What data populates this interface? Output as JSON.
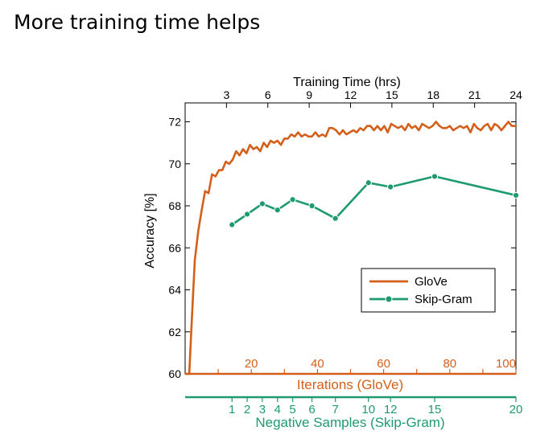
{
  "slide": {
    "title": "More training time helps"
  },
  "chart_data": {
    "type": "line",
    "title": "",
    "ylabel": "Accuracy [%]",
    "ylim": [
      60,
      72.9
    ],
    "yticks": [
      60,
      62,
      64,
      66,
      68,
      70,
      72
    ],
    "grid": false,
    "legend_position": "lower-right",
    "top_axis": {
      "label": "Training Time (hrs)",
      "range": [
        0,
        24
      ],
      "ticks": [
        3,
        6,
        9,
        12,
        15,
        18,
        21,
        24
      ]
    },
    "iterations_axis": {
      "label": "Iterations (GloVe)",
      "color": "#d35f1a",
      "range": [
        0,
        100
      ],
      "ticks": [
        20,
        40,
        60,
        80,
        100
      ]
    },
    "negative_samples_axis": {
      "label": "Negative Samples (Skip-Gram)",
      "color": "#1e9a72",
      "ticks": [
        {
          "label": "1",
          "hrs": 3.4
        },
        {
          "label": "2",
          "hrs": 4.5
        },
        {
          "label": "3",
          "hrs": 5.6
        },
        {
          "label": "4",
          "hrs": 6.7
        },
        {
          "label": "5",
          "hrs": 7.8
        },
        {
          "label": "6",
          "hrs": 9.2
        },
        {
          "label": "7",
          "hrs": 10.9
        },
        {
          "label": "10",
          "hrs": 13.3
        },
        {
          "label": "12",
          "hrs": 14.9
        },
        {
          "label": "15",
          "hrs": 18.1
        },
        {
          "label": "20",
          "hrs": 24.0
        }
      ]
    },
    "series": [
      {
        "name": "GloVe",
        "color": "#d35f1a",
        "marker": "none",
        "x_hrs": [
          0,
          0.3,
          0.5,
          0.7,
          0.95,
          1.2,
          1.45,
          1.7,
          1.95,
          2.2,
          2.45,
          2.7,
          2.95,
          3.2,
          3.45,
          3.7,
          3.95,
          4.2,
          4.45,
          4.7,
          4.95,
          5.2,
          5.45,
          5.7,
          5.95,
          6.2,
          6.45,
          6.7,
          6.95,
          7.2,
          7.45,
          7.7,
          7.95,
          8.2,
          8.45,
          8.7,
          8.95,
          9.2,
          9.45,
          9.7,
          9.95,
          10.2,
          10.45,
          10.7,
          10.95,
          11.2,
          11.45,
          11.7,
          11.95,
          12.2,
          12.45,
          12.7,
          12.95,
          13.2,
          13.45,
          13.7,
          13.95,
          14.2,
          14.45,
          14.7,
          14.95,
          15.2,
          15.45,
          15.7,
          15.95,
          16.2,
          16.45,
          16.7,
          16.95,
          17.2,
          17.45,
          17.7,
          17.95,
          18.2,
          18.45,
          18.7,
          18.95,
          19.2,
          19.45,
          19.7,
          19.95,
          20.2,
          20.45,
          20.7,
          20.95,
          21.2,
          21.45,
          21.7,
          21.95,
          22.2,
          22.45,
          22.7,
          22.95,
          23.2,
          23.45,
          23.7,
          24.0
        ],
        "values": [
          60.0,
          60.0,
          62.8,
          65.4,
          66.8,
          67.8,
          68.7,
          68.6,
          69.5,
          69.4,
          69.7,
          69.7,
          70.1,
          70.0,
          70.2,
          70.6,
          70.4,
          70.7,
          70.5,
          70.9,
          70.7,
          70.8,
          70.6,
          71.0,
          70.8,
          71.1,
          71.0,
          71.1,
          70.9,
          71.2,
          71.2,
          71.4,
          71.3,
          71.5,
          71.3,
          71.4,
          71.3,
          71.3,
          71.5,
          71.3,
          71.4,
          71.3,
          71.7,
          71.7,
          71.6,
          71.4,
          71.6,
          71.4,
          71.5,
          71.6,
          71.5,
          71.7,
          71.6,
          71.8,
          71.8,
          71.6,
          71.8,
          71.6,
          71.8,
          71.5,
          71.9,
          71.8,
          71.7,
          71.8,
          71.6,
          71.9,
          71.7,
          71.8,
          71.6,
          71.9,
          71.8,
          71.7,
          71.8,
          72.0,
          71.8,
          71.7,
          71.7,
          71.8,
          71.6,
          71.7,
          71.8,
          71.7,
          71.8,
          71.5,
          71.9,
          71.7,
          71.6,
          71.8,
          71.9,
          71.6,
          71.9,
          71.8,
          71.6,
          71.8,
          72.0,
          71.8,
          71.8
        ]
      },
      {
        "name": "Skip-Gram",
        "color": "#1e9a72",
        "marker": "circle",
        "x_hrs": [
          3.4,
          4.5,
          5.6,
          6.7,
          7.8,
          9.2,
          10.9,
          13.3,
          14.9,
          18.1,
          24.0
        ],
        "values": [
          67.1,
          67.6,
          68.1,
          67.8,
          68.3,
          68.0,
          67.4,
          69.1,
          68.9,
          69.4,
          68.5
        ]
      }
    ]
  }
}
